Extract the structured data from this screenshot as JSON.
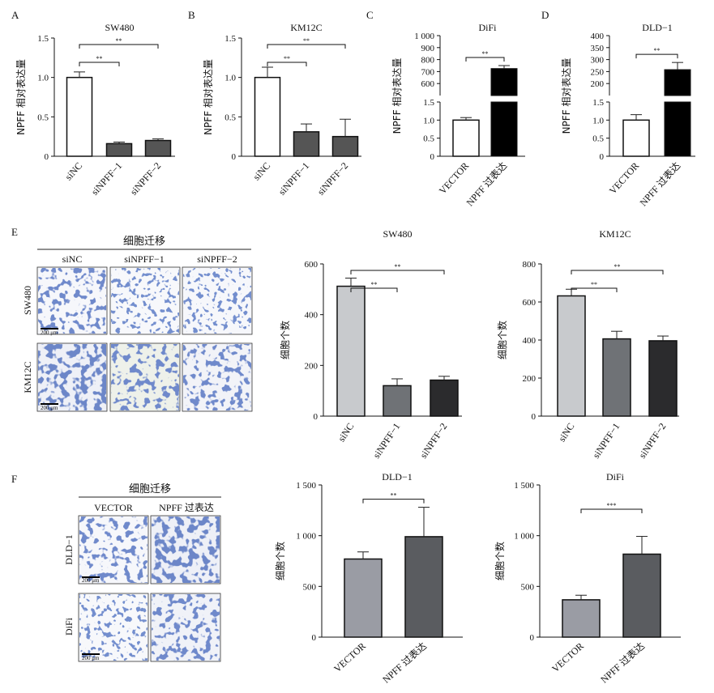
{
  "panels": {
    "A": {
      "letter": "A"
    },
    "B": {
      "letter": "B"
    },
    "C": {
      "letter": "C"
    },
    "D": {
      "letter": "D"
    },
    "E": {
      "letter": "E",
      "header": "细胞迁移",
      "columns": [
        "siNC",
        "siNPFF−1",
        "siNPFF−2"
      ],
      "rows": [
        "SW480",
        "KM12C"
      ],
      "scale_label": "200 μm"
    },
    "F": {
      "letter": "F",
      "header": "细胞迁移",
      "columns": [
        "VECTOR",
        "NPFF 过表达"
      ],
      "rows": [
        "DLD−1",
        "DiFi"
      ],
      "scale_label": "200 μm"
    }
  },
  "chart_data": [
    {
      "id": "A",
      "type": "bar",
      "title": "SW480",
      "ylabel": "NPFF 相对表达量",
      "categories": [
        "siNC",
        "siNPFF−1",
        "siNPFF−2"
      ],
      "values": [
        1.0,
        0.16,
        0.2
      ],
      "errors": [
        0.07,
        0.02,
        0.02
      ],
      "colors": [
        "#ffffff",
        "#555555",
        "#555555"
      ],
      "ylim": [
        0,
        1.5
      ],
      "yticks": [
        0,
        0.5,
        1.0,
        1.5
      ],
      "ytick_labels": [
        "0",
        "0.5",
        "1.0",
        "1.5"
      ],
      "significance": [
        {
          "from": 0,
          "to": 1,
          "label": "**"
        },
        {
          "from": 0,
          "to": 2,
          "label": "**"
        }
      ]
    },
    {
      "id": "B",
      "type": "bar",
      "title": "KM12C",
      "ylabel": "NPFF 相对表达量",
      "categories": [
        "siNC",
        "siNPFF−1",
        "siNPFF−2"
      ],
      "values": [
        1.0,
        0.31,
        0.25
      ],
      "errors": [
        0.13,
        0.1,
        0.22
      ],
      "colors": [
        "#ffffff",
        "#555555",
        "#555555"
      ],
      "ylim": [
        0,
        1.5
      ],
      "yticks": [
        0,
        0.5,
        1.0,
        1.5
      ],
      "ytick_labels": [
        "0",
        "0.5",
        "1.0",
        "1.5"
      ],
      "significance": [
        {
          "from": 0,
          "to": 1,
          "label": "**"
        },
        {
          "from": 0,
          "to": 2,
          "label": "**"
        }
      ]
    },
    {
      "id": "C",
      "type": "bar",
      "title": "DiFi",
      "ylabel": "NPFF 相对表达量",
      "axis_break": true,
      "lower_axis": {
        "range": [
          0,
          1.5
        ],
        "ticks": [
          0,
          0.5,
          1.0,
          1.5
        ],
        "tick_labels": [
          "0",
          "0.5",
          "1.0",
          "1.5"
        ]
      },
      "upper_axis": {
        "range": [
          500,
          1000
        ],
        "ticks": [
          600,
          700,
          800,
          900,
          1000
        ],
        "tick_labels": [
          "600",
          "700",
          "800",
          "900",
          "1 000"
        ]
      },
      "categories": [
        "VECTOR",
        "NPFF 过表达"
      ],
      "values": [
        1.0,
        725
      ],
      "errors": [
        0.07,
        25
      ],
      "colors": [
        "#ffffff",
        "#000000"
      ],
      "significance": [
        {
          "from": 0,
          "to": 1,
          "label": "**"
        }
      ]
    },
    {
      "id": "D",
      "type": "bar",
      "title": "DLD−1",
      "ylabel": "NPFF 相对表达量",
      "axis_break": true,
      "lower_axis": {
        "range": [
          0,
          1.5
        ],
        "ticks": [
          0,
          0.5,
          1.0,
          1.5
        ],
        "tick_labels": [
          "0",
          "0.5",
          "1.0",
          "1.5"
        ]
      },
      "upper_axis": {
        "range": [
          150,
          400
        ],
        "ticks": [
          200,
          250,
          300,
          350,
          400
        ],
        "tick_labels": [
          "200",
          "250",
          "300",
          "350",
          "400"
        ]
      },
      "categories": [
        "VECTOR",
        "NPFF 过表达"
      ],
      "values": [
        1.0,
        258
      ],
      "errors": [
        0.15,
        30
      ],
      "colors": [
        "#ffffff",
        "#000000"
      ],
      "significance": [
        {
          "from": 0,
          "to": 1,
          "label": "**"
        }
      ]
    },
    {
      "id": "E1",
      "type": "bar",
      "title": "SW480",
      "ylabel": "细胞个数",
      "categories": [
        "siNC",
        "siNPFF−1",
        "siNPFF−2"
      ],
      "values": [
        512,
        120,
        142
      ],
      "errors": [
        32,
        27,
        15
      ],
      "colors": [
        "#c8cacd",
        "#6f7276",
        "#2b2b2d"
      ],
      "ylim": [
        0,
        600
      ],
      "yticks": [
        0,
        200,
        400,
        600
      ],
      "ytick_labels": [
        "0",
        "200",
        "400",
        "600"
      ],
      "significance": [
        {
          "from": 0,
          "to": 1,
          "label": "**"
        },
        {
          "from": 0,
          "to": 2,
          "label": "**"
        }
      ]
    },
    {
      "id": "E2",
      "type": "bar",
      "title": "KM12C",
      "ylabel": "细胞个数",
      "categories": [
        "siNC",
        "siNPFF−1",
        "siNPFF−2"
      ],
      "values": [
        632,
        406,
        396
      ],
      "errors": [
        35,
        40,
        25
      ],
      "colors": [
        "#c8cacd",
        "#6f7276",
        "#2b2b2d"
      ],
      "ylim": [
        0,
        800
      ],
      "yticks": [
        0,
        200,
        400,
        600,
        800
      ],
      "ytick_labels": [
        "0",
        "200",
        "400",
        "600",
        "800"
      ],
      "significance": [
        {
          "from": 0,
          "to": 1,
          "label": "**"
        },
        {
          "from": 0,
          "to": 2,
          "label": "**"
        }
      ]
    },
    {
      "id": "F1",
      "type": "bar",
      "title": "DLD−1",
      "ylabel": "细胞个数",
      "categories": [
        "VECTOR",
        "NPFF 过表达"
      ],
      "values": [
        770,
        990
      ],
      "errors": [
        70,
        290
      ],
      "colors": [
        "#9a9ca4",
        "#5a5c60"
      ],
      "ylim": [
        0,
        1500
      ],
      "yticks": [
        0,
        500,
        1000,
        1500
      ],
      "ytick_labels": [
        "0",
        "500",
        "1 000",
        "1 500"
      ],
      "significance": [
        {
          "from": 0,
          "to": 1,
          "label": "**"
        }
      ]
    },
    {
      "id": "F2",
      "type": "bar",
      "title": "DiFi",
      "ylabel": "细胞个数",
      "categories": [
        "VECTOR",
        "NPFF 过表达"
      ],
      "values": [
        368,
        818
      ],
      "errors": [
        45,
        175
      ],
      "colors": [
        "#9a9ca4",
        "#5a5c60"
      ],
      "ylim": [
        0,
        1500
      ],
      "yticks": [
        0,
        500,
        1000,
        1500
      ],
      "ytick_labels": [
        "0",
        "500",
        "1 000",
        "1 500"
      ],
      "significance": [
        {
          "from": 0,
          "to": 1,
          "label": "***"
        }
      ]
    }
  ]
}
